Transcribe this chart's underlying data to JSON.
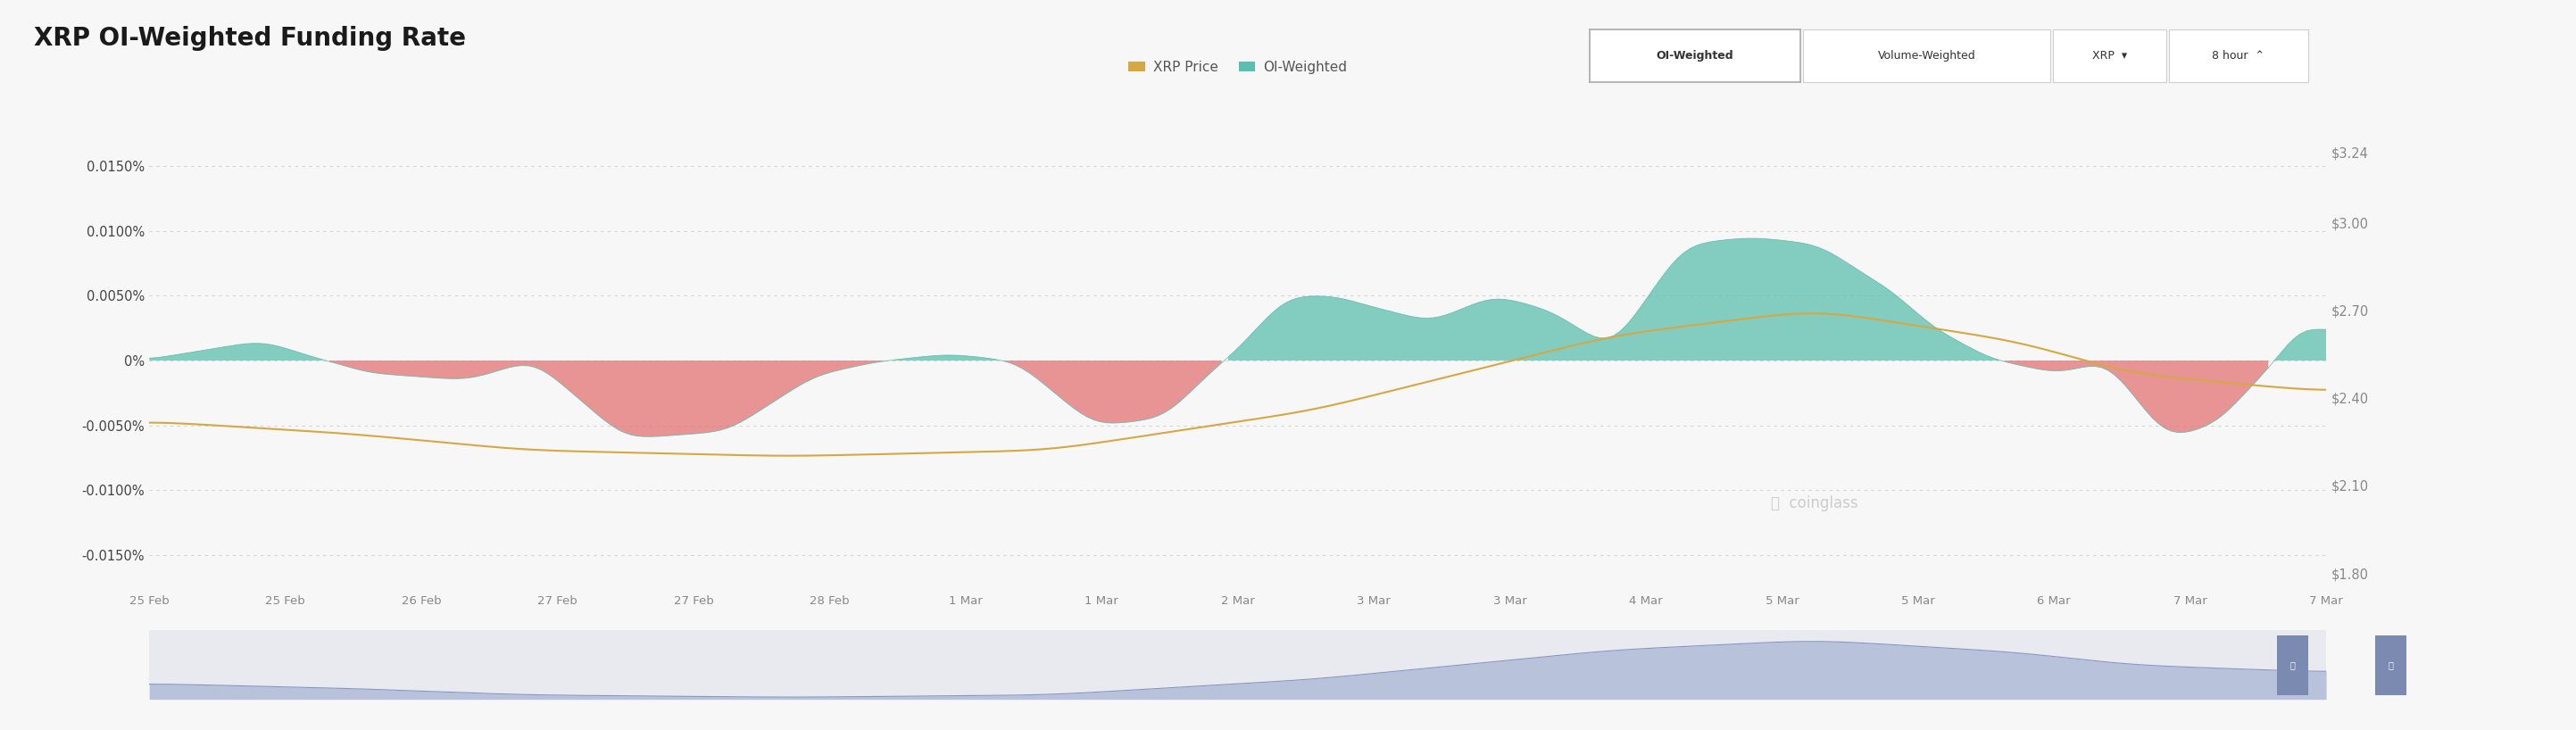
{
  "title": "XRP OI-Weighted Funding Rate",
  "bg_color": "#f7f7f8",
  "plot_bg_color": "#f7f7f8",
  "positive_color": "#5bbfad",
  "negative_color": "#e57373",
  "price_color": "#d4a843",
  "grid_color": "#cccccc",
  "ylim": [
    -0.0175,
    0.0185
  ],
  "y_ticks": [
    0.015,
    0.01,
    0.005,
    0.0,
    -0.005,
    -0.01,
    -0.015
  ],
  "y_tick_labels": [
    "0.0150%",
    "0.0100%",
    "0.0050%",
    "0%",
    "-0.0050%",
    "-0.0100%",
    "-0.0150%"
  ],
  "right_ylim": [
    1.75,
    3.35
  ],
  "right_y_ticks": [
    3.24,
    3.0,
    2.7,
    2.4,
    2.1,
    1.8
  ],
  "right_y_tick_labels": [
    "$3.24",
    "$3.00",
    "$2.70",
    "$2.40",
    "$2.10",
    "$1.80"
  ],
  "x_tick_labels": [
    "25 Feb",
    "25 Feb",
    "26 Feb",
    "27 Feb",
    "27 Feb",
    "28 Feb",
    "1 Mar",
    "1 Mar",
    "2 Mar",
    "3 Mar",
    "3 Mar",
    "4 Mar",
    "5 Mar",
    "5 Mar",
    "6 Mar",
    "7 Mar",
    "7 Mar"
  ],
  "legend_items": [
    "XRP Price",
    "OI-Weighted"
  ],
  "legend_colors": [
    "#d4a843",
    "#5bbfad"
  ],
  "btn_labels": [
    "OI-Weighted",
    "Volume-Weighted",
    "XRP",
    "8 hour"
  ],
  "watermark": "coinglass"
}
